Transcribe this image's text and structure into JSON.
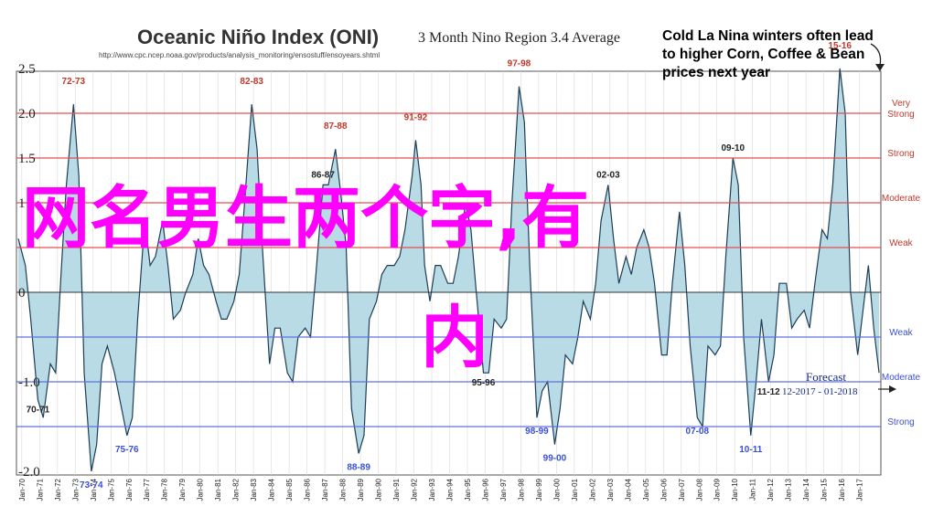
{
  "title": "Oceanic Niño Index (ONI)",
  "subtitle": "3 Month Nino Region 3.4 Average",
  "source_url": "http://www.cpc.ncep.noaa.gov/products/analysis_monitoring/ensostuff/ensoyears.shtml",
  "annotation": "Cold La Nina winters often lead to higher Corn, Coffee & Bean prices next year",
  "overlay_text_line1": "网名男生两个字,有",
  "overlay_text_line2": "内",
  "forecast_label": "Forecast",
  "forecast_range": "12-2017 - 01-2018",
  "colors": {
    "area_fill": "#b9dbe6",
    "line": "#1d3d58",
    "el_nino_lines": "#e05050",
    "la_nina_lines": "#6070e0",
    "overlay": "#ff00ff",
    "el_nino_label": "#c0392b",
    "la_nina_label": "#3b4fd8"
  },
  "chart_data": {
    "type": "area",
    "ylim": [
      -2.5,
      2.5
    ],
    "y_ticks": [
      {
        "value": 2.5,
        "label": "2.5"
      },
      {
        "value": 2.0,
        "label": "2.0"
      },
      {
        "value": 1.5,
        "label": "1.5"
      },
      {
        "value": 1.0,
        "label": "1"
      },
      {
        "value": 0.0,
        "label": "0"
      },
      {
        "value": -1.0,
        "label": "-1.0"
      },
      {
        "value": -2.0,
        "label": "-2.0"
      }
    ],
    "x_ticks": [
      "Jan-70",
      "Jan-71",
      "Jan-72",
      "Jan-73",
      "Jan-74",
      "Jan-75",
      "Jan-76",
      "Jan-77",
      "Jan-78",
      "Jan-79",
      "Jan-80",
      "Jan-81",
      "Jan-82",
      "Jan-83",
      "Jan-84",
      "Jan-85",
      "Jan-86",
      "Jan-87",
      "Jan-88",
      "Jan-89",
      "Jan-90",
      "Jan-91",
      "Jan-92",
      "Jan-93",
      "Jan-94",
      "Jan-95",
      "Jan-96",
      "Jan-97",
      "Jan-98",
      "Jan-99",
      "Jan-00",
      "Jan-01",
      "Jan-02",
      "Jan-03",
      "Jan-04",
      "Jan-05",
      "Jan-06",
      "Jan-07",
      "Jan-08",
      "Jan-09",
      "Jan-10",
      "Jan-11",
      "Jan-12",
      "Jan-13",
      "Jan-14",
      "Jan-15",
      "Jan-16",
      "Jan-17"
    ],
    "x_range": [
      1969.7,
      2018.2
    ],
    "series": [
      {
        "points": [
          [
            1969.8,
            0.6
          ],
          [
            1970.2,
            0.3
          ],
          [
            1970.5,
            -0.3
          ],
          [
            1970.9,
            -1.2
          ],
          [
            1971.2,
            -1.4
          ],
          [
            1971.6,
            -0.8
          ],
          [
            1971.9,
            -0.9
          ],
          [
            1972.2,
            0.2
          ],
          [
            1972.5,
            1.2
          ],
          [
            1972.9,
            2.1
          ],
          [
            1973.2,
            1.3
          ],
          [
            1973.5,
            -0.9
          ],
          [
            1973.9,
            -2.0
          ],
          [
            1974.2,
            -1.7
          ],
          [
            1974.5,
            -0.8
          ],
          [
            1974.8,
            -0.6
          ],
          [
            1975.2,
            -0.9
          ],
          [
            1975.5,
            -1.2
          ],
          [
            1975.9,
            -1.6
          ],
          [
            1976.2,
            -1.4
          ],
          [
            1976.5,
            -0.3
          ],
          [
            1976.9,
            0.8
          ],
          [
            1977.2,
            0.3
          ],
          [
            1977.5,
            0.4
          ],
          [
            1977.9,
            0.8
          ],
          [
            1978.2,
            0.3
          ],
          [
            1978.5,
            -0.3
          ],
          [
            1978.9,
            -0.2
          ],
          [
            1979.2,
            0.0
          ],
          [
            1979.6,
            0.2
          ],
          [
            1979.9,
            0.6
          ],
          [
            1980.2,
            0.3
          ],
          [
            1980.5,
            0.2
          ],
          [
            1980.9,
            -0.1
          ],
          [
            1981.2,
            -0.3
          ],
          [
            1981.5,
            -0.3
          ],
          [
            1981.9,
            -0.1
          ],
          [
            1982.2,
            0.2
          ],
          [
            1982.5,
            1.0
          ],
          [
            1982.9,
            2.1
          ],
          [
            1983.2,
            1.6
          ],
          [
            1983.5,
            0.5
          ],
          [
            1983.9,
            -0.8
          ],
          [
            1984.2,
            -0.4
          ],
          [
            1984.5,
            -0.4
          ],
          [
            1984.9,
            -0.9
          ],
          [
            1985.2,
            -1.0
          ],
          [
            1985.5,
            -0.5
          ],
          [
            1985.9,
            -0.4
          ],
          [
            1986.2,
            -0.5
          ],
          [
            1986.5,
            0.2
          ],
          [
            1986.9,
            1.2
          ],
          [
            1987.2,
            1.2
          ],
          [
            1987.6,
            1.6
          ],
          [
            1987.9,
            1.1
          ],
          [
            1988.2,
            0.5
          ],
          [
            1988.5,
            -1.3
          ],
          [
            1988.9,
            -1.8
          ],
          [
            1989.2,
            -1.6
          ],
          [
            1989.5,
            -0.3
          ],
          [
            1989.9,
            -0.1
          ],
          [
            1990.2,
            0.2
          ],
          [
            1990.5,
            0.3
          ],
          [
            1990.9,
            0.3
          ],
          [
            1991.2,
            0.4
          ],
          [
            1991.5,
            0.7
          ],
          [
            1991.9,
            1.3
          ],
          [
            1992.1,
            1.7
          ],
          [
            1992.4,
            1.2
          ],
          [
            1992.6,
            0.3
          ],
          [
            1992.9,
            -0.1
          ],
          [
            1993.2,
            0.3
          ],
          [
            1993.5,
            0.3
          ],
          [
            1993.9,
            0.1
          ],
          [
            1994.2,
            0.1
          ],
          [
            1994.5,
            0.4
          ],
          [
            1994.9,
            1.0
          ],
          [
            1995.2,
            0.7
          ],
          [
            1995.5,
            0.0
          ],
          [
            1995.9,
            -0.9
          ],
          [
            1996.2,
            -0.9
          ],
          [
            1996.5,
            -0.3
          ],
          [
            1996.9,
            -0.4
          ],
          [
            1997.2,
            -0.3
          ],
          [
            1997.5,
            1.0
          ],
          [
            1997.9,
            2.3
          ],
          [
            1998.2,
            1.9
          ],
          [
            1998.5,
            0.3
          ],
          [
            1998.9,
            -1.4
          ],
          [
            1999.2,
            -1.1
          ],
          [
            1999.5,
            -1.0
          ],
          [
            1999.9,
            -1.7
          ],
          [
            2000.2,
            -1.3
          ],
          [
            2000.5,
            -0.7
          ],
          [
            2000.9,
            -0.8
          ],
          [
            2001.2,
            -0.5
          ],
          [
            2001.5,
            -0.1
          ],
          [
            2001.9,
            -0.3
          ],
          [
            2002.2,
            0.1
          ],
          [
            2002.5,
            0.8
          ],
          [
            2002.9,
            1.2
          ],
          [
            2003.2,
            0.6
          ],
          [
            2003.5,
            0.1
          ],
          [
            2003.9,
            0.4
          ],
          [
            2004.2,
            0.2
          ],
          [
            2004.5,
            0.5
          ],
          [
            2004.9,
            0.7
          ],
          [
            2005.2,
            0.5
          ],
          [
            2005.5,
            0.1
          ],
          [
            2005.9,
            -0.7
          ],
          [
            2006.2,
            -0.7
          ],
          [
            2006.5,
            0.1
          ],
          [
            2006.9,
            0.9
          ],
          [
            2007.2,
            0.3
          ],
          [
            2007.5,
            -0.6
          ],
          [
            2007.9,
            -1.4
          ],
          [
            2008.2,
            -1.5
          ],
          [
            2008.5,
            -0.6
          ],
          [
            2008.9,
            -0.7
          ],
          [
            2009.2,
            -0.6
          ],
          [
            2009.5,
            0.4
          ],
          [
            2009.9,
            1.5
          ],
          [
            2010.2,
            1.2
          ],
          [
            2010.5,
            -0.5
          ],
          [
            2010.9,
            -1.6
          ],
          [
            2011.2,
            -1.0
          ],
          [
            2011.5,
            -0.3
          ],
          [
            2011.9,
            -1.0
          ],
          [
            2012.2,
            -0.7
          ],
          [
            2012.5,
            0.1
          ],
          [
            2012.9,
            0.1
          ],
          [
            2013.2,
            -0.4
          ],
          [
            2013.5,
            -0.3
          ],
          [
            2013.9,
            -0.2
          ],
          [
            2014.2,
            -0.4
          ],
          [
            2014.5,
            0.1
          ],
          [
            2014.9,
            0.7
          ],
          [
            2015.2,
            0.6
          ],
          [
            2015.5,
            1.2
          ],
          [
            2015.9,
            2.5
          ],
          [
            2016.2,
            2.0
          ],
          [
            2016.5,
            0.0
          ],
          [
            2016.9,
            -0.7
          ],
          [
            2017.2,
            -0.2
          ],
          [
            2017.5,
            0.3
          ],
          [
            2017.8,
            -0.4
          ],
          [
            2018.1,
            -0.9
          ]
        ]
      }
    ],
    "threshold_lines": [
      {
        "value": 2.0,
        "label": "Very Strong",
        "group": "el_nino"
      },
      {
        "value": 1.5,
        "label": "Strong",
        "group": "el_nino"
      },
      {
        "value": 1.0,
        "label": "Moderate",
        "group": "el_nino"
      },
      {
        "value": 0.5,
        "label": "Weak",
        "group": "el_nino"
      },
      {
        "value": -0.5,
        "label": "Weak",
        "group": "la_nina"
      },
      {
        "value": -1.0,
        "label": "Moderate",
        "group": "la_nina"
      },
      {
        "value": -1.5,
        "label": "Strong",
        "group": "la_nina"
      }
    ],
    "event_labels": [
      {
        "text": "72-73",
        "x": 1972.9,
        "y": 2.1,
        "group": "el_nino"
      },
      {
        "text": "82-83",
        "x": 1982.9,
        "y": 2.1,
        "group": "el_nino"
      },
      {
        "text": "87-88",
        "x": 1987.6,
        "y": 1.6,
        "group": "el_nino"
      },
      {
        "text": "91-92",
        "x": 1992.1,
        "y": 1.7,
        "group": "el_nino"
      },
      {
        "text": "97-98",
        "x": 1997.9,
        "y": 2.3,
        "group": "el_nino"
      },
      {
        "text": "15-16",
        "x": 2015.9,
        "y": 2.5,
        "group": "el_nino"
      },
      {
        "text": "86-87",
        "x": 1986.9,
        "y": 1.2,
        "group": "neutral"
      },
      {
        "text": "02-03",
        "x": 2002.9,
        "y": 1.2,
        "group": "neutral"
      },
      {
        "text": "09-10",
        "x": 2009.9,
        "y": 1.5,
        "group": "neutral"
      },
      {
        "text": "70-71",
        "x": 1970.9,
        "y": -1.2,
        "group": "neutral_low"
      },
      {
        "text": "73-74",
        "x": 1973.9,
        "y": -2.0,
        "group": "la_nina"
      },
      {
        "text": "75-76",
        "x": 1975.9,
        "y": -1.6,
        "group": "la_nina"
      },
      {
        "text": "88-89",
        "x": 1988.9,
        "y": -1.8,
        "group": "la_nina"
      },
      {
        "text": "95-96",
        "x": 1995.9,
        "y": -0.9,
        "group": "neutral_low"
      },
      {
        "text": "98-99",
        "x": 1998.9,
        "y": -1.4,
        "group": "la_nina"
      },
      {
        "text": "99-00",
        "x": 1999.9,
        "y": -1.7,
        "group": "la_nina"
      },
      {
        "text": "07-08",
        "x": 2007.9,
        "y": -1.4,
        "group": "la_nina"
      },
      {
        "text": "10-11",
        "x": 2010.9,
        "y": -1.6,
        "group": "la_nina"
      },
      {
        "text": "11-12",
        "x": 2011.9,
        "y": -1.0,
        "group": "neutral_low"
      }
    ]
  }
}
